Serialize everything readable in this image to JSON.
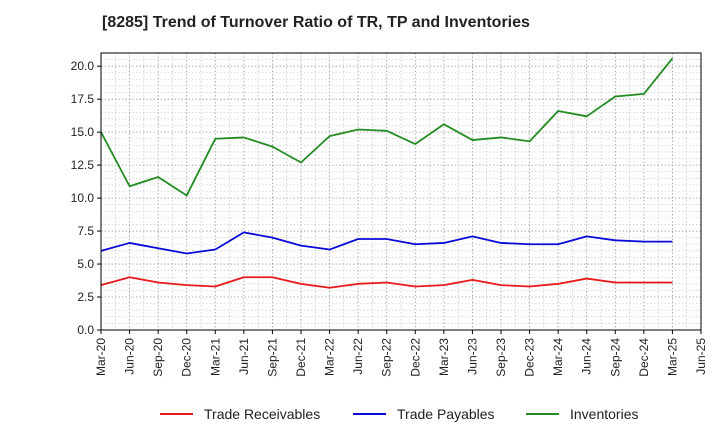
{
  "chart_data": {
    "type": "line",
    "title": "[8285]  Trend of Turnover Ratio of TR, TP and Inventories",
    "xlabel": "",
    "ylabel": "",
    "ylim": [
      0,
      21
    ],
    "y_ticks": [
      "0.0",
      "2.5",
      "5.0",
      "7.5",
      "10.0",
      "12.5",
      "15.0",
      "17.5",
      "20.0"
    ],
    "y_tick_values": [
      0,
      2.5,
      5,
      7.5,
      10,
      12.5,
      15,
      17.5,
      20
    ],
    "grid": true,
    "legend_position": "bottom",
    "x_tick_labels": [
      "Mar-20",
      "Jun-20",
      "Sep-20",
      "Dec-20",
      "Mar-21",
      "Jun-21",
      "Sep-21",
      "Dec-21",
      "Mar-22",
      "Jun-22",
      "Sep-22",
      "Dec-22",
      "Mar-23",
      "Jun-23",
      "Sep-23",
      "Dec-23",
      "Mar-24",
      "Jun-24",
      "Sep-24",
      "Dec-24",
      "Mar-25",
      "Jun-25"
    ],
    "categories": [
      "Mar-20",
      "Jun-20",
      "Sep-20",
      "Dec-20",
      "Mar-21",
      "Jun-21",
      "Sep-21",
      "Dec-21",
      "Mar-22",
      "Jun-22",
      "Sep-22",
      "Dec-22",
      "Mar-23",
      "Jun-23",
      "Sep-23",
      "Dec-23",
      "Mar-24",
      "Jun-24",
      "Sep-24",
      "Dec-24",
      "Mar-25"
    ],
    "series": [
      {
        "name": "Trade Receivables",
        "color": "#e8191a",
        "values": [
          3.4,
          4.0,
          3.6,
          3.4,
          3.3,
          4.0,
          4.0,
          3.5,
          3.2,
          3.5,
          3.6,
          3.3,
          3.4,
          3.8,
          3.4,
          3.3,
          3.5,
          3.9,
          3.6,
          3.6,
          3.6
        ]
      },
      {
        "name": "Trade Payables",
        "color": "#0a0ad8",
        "values": [
          6.0,
          6.6,
          6.2,
          5.8,
          6.1,
          7.4,
          7.0,
          6.4,
          6.1,
          6.9,
          6.9,
          6.5,
          6.6,
          7.1,
          6.6,
          6.5,
          6.5,
          7.1,
          6.8,
          6.7,
          6.7
        ]
      },
      {
        "name": "Inventories",
        "color": "#228b22",
        "values": [
          15.0,
          10.9,
          11.6,
          10.2,
          14.5,
          14.6,
          13.9,
          12.7,
          14.7,
          15.2,
          15.1,
          14.1,
          15.6,
          14.4,
          14.6,
          14.3,
          16.6,
          16.2,
          17.7,
          17.9,
          20.6
        ]
      }
    ]
  }
}
